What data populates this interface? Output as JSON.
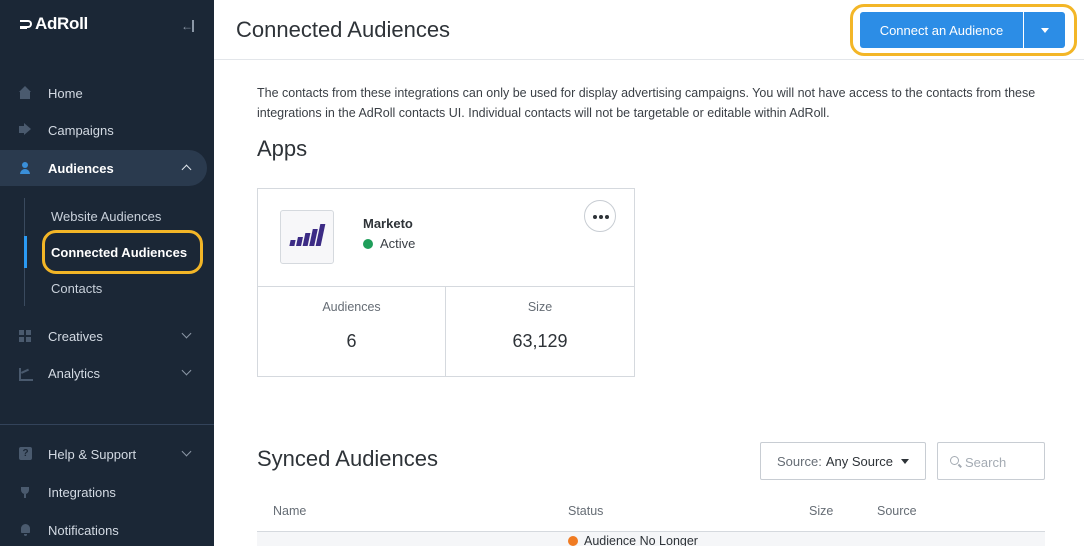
{
  "sidebar": {
    "brand": "AdRoll",
    "items": [
      {
        "label": "Home"
      },
      {
        "label": "Campaigns"
      },
      {
        "label": "Audiences"
      },
      {
        "label": "Creatives"
      },
      {
        "label": "Analytics"
      },
      {
        "label": "Help & Support"
      },
      {
        "label": "Integrations"
      },
      {
        "label": "Notifications"
      }
    ],
    "sub_items": [
      {
        "label": "Website Audiences"
      },
      {
        "label": "Connected Audiences"
      },
      {
        "label": "Contacts"
      }
    ]
  },
  "header": {
    "title": "Connected Audiences",
    "connect_button": "Connect an Audience"
  },
  "description": "The contacts from these integrations can only be used for display advertising campaigns. You will not have access to the contacts from these integrations in the AdRoll contacts UI. Individual contacts will not be targetable or editable within AdRoll.",
  "apps": {
    "heading": "Apps",
    "card": {
      "name": "Marketo",
      "status": "Active",
      "status_color": "#1f9e5a",
      "stats": [
        {
          "label": "Audiences",
          "value": "6"
        },
        {
          "label": "Size",
          "value": "63,129"
        }
      ]
    }
  },
  "synced": {
    "heading": "Synced Audiences",
    "source_filter": {
      "key": "Source:",
      "value": "Any Source"
    },
    "search_placeholder": "Search",
    "columns": [
      "Name",
      "Status",
      "Size",
      "Source"
    ],
    "rows": [
      {
        "status": "Audience No Longer",
        "status_color": "#f07b22"
      }
    ]
  },
  "colors": {
    "accent": "#2c8de6",
    "highlight": "#f3b627",
    "sidebar_bg": "#1b2736"
  }
}
